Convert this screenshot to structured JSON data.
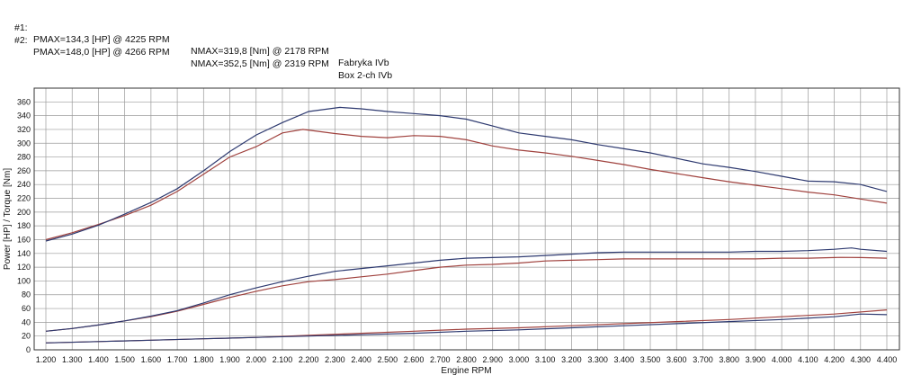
{
  "header": {
    "rows": [
      {
        "id": "#1:",
        "pmax": "PMAX=134,3 [HP] @ 4225 RPM",
        "nmax": "NMAX=319,8 [Nm] @ 2178 RPM",
        "name": "Fabryka IVb"
      },
      {
        "id": "#2:",
        "pmax": "PMAX=148,0 [HP] @ 4266 RPM",
        "nmax": "NMAX=352,5 [Nm] @ 2319 RPM",
        "name": "Box 2-ch IVb"
      }
    ]
  },
  "chart_data": {
    "type": "line",
    "xlabel": "Engine RPM",
    "ylabel": "Power [HP] / Torque [Nm]",
    "xlim": [
      1200,
      4400
    ],
    "ylim": [
      0,
      380
    ],
    "x_ticks": [
      "1.200",
      "1.300",
      "1.400",
      "1.500",
      "1.600",
      "1.700",
      "1.800",
      "1.900",
      "2.000",
      "2.100",
      "2.200",
      "2.300",
      "2.400",
      "2.500",
      "2.600",
      "2.700",
      "2.800",
      "2.900",
      "3.000",
      "3.100",
      "3.200",
      "3.300",
      "3.400",
      "3.500",
      "3.600",
      "3.700",
      "3.800",
      "3.900",
      "4.000",
      "4.100",
      "4.200",
      "4.300",
      "4.400"
    ],
    "y_ticks": [
      0,
      20,
      40,
      60,
      80,
      100,
      120,
      140,
      160,
      180,
      200,
      220,
      240,
      260,
      280,
      300,
      320,
      340,
      360
    ],
    "grid": true,
    "colors": {
      "run1": "#a0423e",
      "run2": "#2e3a70",
      "grid": "#9a9a9a",
      "frame": "#333333"
    },
    "series": [
      {
        "run": 1,
        "color": "#a0423e",
        "x": [
          1200,
          1300,
          1400,
          1500,
          1600,
          1700,
          1800,
          1900,
          2000,
          2100,
          2178,
          2300,
          2400,
          2500,
          2600,
          2700,
          2800,
          2900,
          3000,
          3100,
          3200,
          3300,
          3400,
          3500,
          3600,
          3700,
          3800,
          3900,
          4000,
          4100,
          4200,
          4300,
          4400
        ],
        "values": [
          160,
          170,
          182,
          195,
          210,
          230,
          255,
          280,
          295,
          315,
          320,
          314,
          310,
          308,
          311,
          310,
          305,
          296,
          290,
          286,
          281,
          275,
          269,
          262,
          256,
          250,
          244,
          239,
          234,
          229,
          225,
          219,
          213
        ]
      },
      {
        "run": 2,
        "color": "#2e3a70",
        "x": [
          1200,
          1300,
          1400,
          1500,
          1600,
          1700,
          1800,
          1900,
          2000,
          2100,
          2200,
          2319,
          2400,
          2500,
          2600,
          2700,
          2800,
          2900,
          3000,
          3100,
          3200,
          3300,
          3400,
          3500,
          3600,
          3700,
          3800,
          3900,
          4000,
          4100,
          4200,
          4300,
          4400
        ],
        "values": [
          158,
          168,
          181,
          197,
          214,
          234,
          260,
          288,
          312,
          330,
          346,
          352,
          350,
          346,
          343,
          340,
          335,
          325,
          315,
          310,
          305,
          298,
          292,
          286,
          278,
          270,
          265,
          259,
          252,
          245,
          244,
          240,
          230
        ]
      },
      {
        "run": 1,
        "color": "#a0423e",
        "x": [
          1200,
          1300,
          1400,
          1500,
          1600,
          1700,
          1800,
          1900,
          2000,
          2100,
          2200,
          2300,
          2400,
          2500,
          2600,
          2700,
          2800,
          2900,
          3000,
          3100,
          3200,
          3300,
          3400,
          3500,
          3600,
          3700,
          3800,
          3900,
          4000,
          4100,
          4200,
          4225,
          4300,
          4400
        ],
        "values": [
          27,
          31,
          36,
          42,
          48,
          56,
          66,
          76,
          85,
          93,
          99,
          102,
          106,
          110,
          115,
          120,
          123,
          124,
          126,
          129,
          130,
          131,
          132,
          132,
          132,
          132,
          132,
          132,
          133,
          133,
          134,
          134.3,
          134,
          133
        ]
      },
      {
        "run": 2,
        "color": "#2e3a70",
        "x": [
          1200,
          1300,
          1400,
          1500,
          1600,
          1700,
          1800,
          1900,
          2000,
          2100,
          2200,
          2300,
          2400,
          2500,
          2600,
          2700,
          2800,
          2900,
          3000,
          3100,
          3200,
          3300,
          3400,
          3500,
          3600,
          3700,
          3800,
          3900,
          4000,
          4100,
          4200,
          4266,
          4300,
          4400
        ],
        "values": [
          27,
          31,
          36,
          42,
          49,
          57,
          68,
          80,
          90,
          99,
          107,
          114,
          118,
          122,
          126,
          130,
          133,
          134,
          135,
          137,
          139,
          141,
          142,
          142,
          142,
          142,
          142,
          143,
          143,
          144,
          146,
          148,
          146,
          143
        ]
      },
      {
        "run": 1,
        "color": "#a0423e",
        "x": [
          1200,
          1400,
          1600,
          1800,
          2000,
          2200,
          2400,
          2600,
          2800,
          3000,
          3200,
          3400,
          3600,
          3800,
          4000,
          4200,
          4400
        ],
        "values": [
          10,
          12,
          14,
          16,
          18,
          21,
          24,
          27,
          30,
          32,
          35,
          38,
          41,
          44,
          48,
          52,
          58
        ]
      },
      {
        "run": 2,
        "color": "#2e3a70",
        "x": [
          1200,
          1400,
          1600,
          1800,
          2000,
          2200,
          2400,
          2600,
          2800,
          3000,
          3200,
          3400,
          3600,
          3800,
          4000,
          4200,
          4300,
          4400
        ],
        "values": [
          10,
          12,
          14,
          16,
          18,
          20,
          22,
          24,
          27,
          29,
          32,
          35,
          38,
          41,
          44,
          48,
          52,
          51
        ]
      }
    ]
  }
}
